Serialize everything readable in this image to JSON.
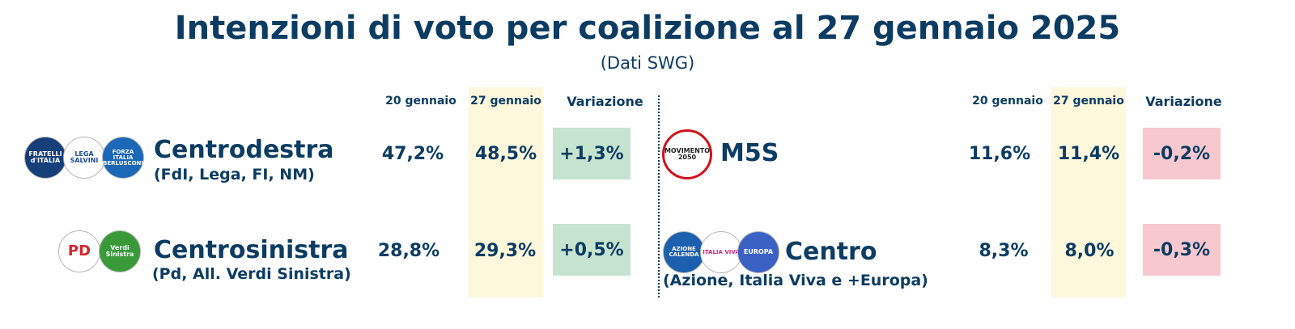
{
  "title": "Intenzioni di voto per coalizione al 27 gennaio 2025",
  "subtitle": "(Dati SWG)",
  "headers": {
    "prev": "20 gennaio",
    "curr": "27 gennaio",
    "change": "Variazione"
  },
  "colors": {
    "text": "#0d3c63",
    "highlight": "#fdf7dc",
    "positive": "#c5e3cf",
    "negative": "#f7c9cf"
  },
  "left": [
    {
      "name": "Centrodestra",
      "detail": "(FdI, Lega, FI, NM)",
      "prev": "47,2%",
      "curr": "48,5%",
      "change": "+1,3%",
      "logos": [
        {
          "text": "FRATELLI d'ITALIA"
        },
        {
          "text": "LEGA SALVINI"
        },
        {
          "text": "FORZA ITALIA BERLUSCONI"
        }
      ]
    },
    {
      "name": "Centrosinistra",
      "detail": "(Pd, All. Verdi Sinistra)",
      "prev": "28,8%",
      "curr": "29,3%",
      "change": "+0,5%",
      "logos": [
        {
          "text": "PD"
        },
        {
          "text": "Verdi Sinistra"
        }
      ]
    }
  ],
  "right": [
    {
      "name": "M5S",
      "detail": "",
      "prev": "11,6%",
      "curr": "11,4%",
      "change": "-0,2%",
      "logos": [
        {
          "text": "MOVIMENTO 2050"
        }
      ]
    },
    {
      "name": "Centro",
      "detail": "(Azione, Italia Viva e +Europa)",
      "prev": "8,3%",
      "curr": "8,0%",
      "change": "-0,3%",
      "logos": [
        {
          "text": "AZIONE CALENDA"
        },
        {
          "text": "ITALIA VIVA"
        },
        {
          "text": "EUROPA"
        }
      ]
    }
  ]
}
